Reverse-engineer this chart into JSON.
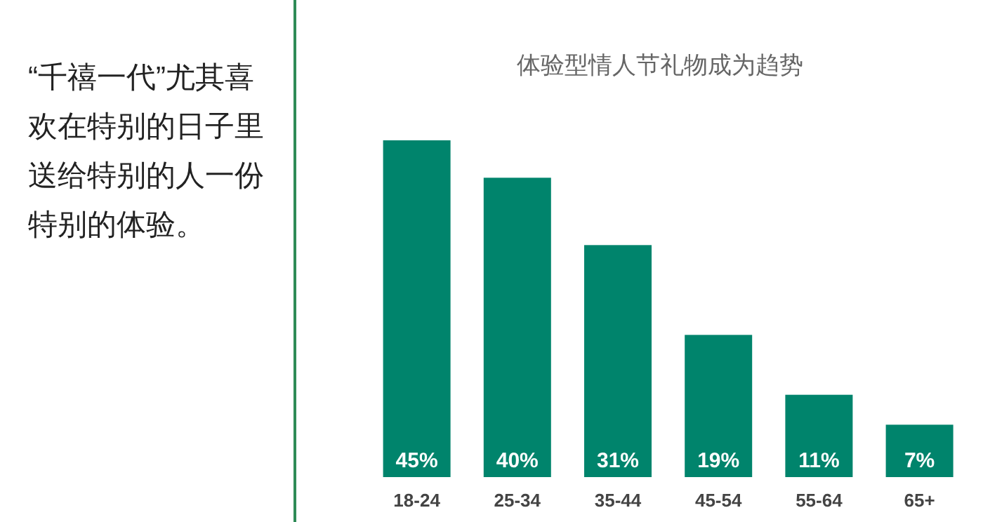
{
  "chart_data": {
    "type": "bar",
    "title": "体验型情人节礼物成为趋势",
    "categories": [
      "18-24",
      "25-34",
      "35-44",
      "45-54",
      "55-64",
      "65+"
    ],
    "values": [
      45,
      40,
      31,
      19,
      11,
      7
    ],
    "value_labels": [
      "45%",
      "40%",
      "31%",
      "19%",
      "11%",
      "7%"
    ],
    "color": "#00846c",
    "annotations": [
      "“千禧一代”尤其喜欢在特别的日子里送给特别的人一份特别的体验。"
    ]
  }
}
